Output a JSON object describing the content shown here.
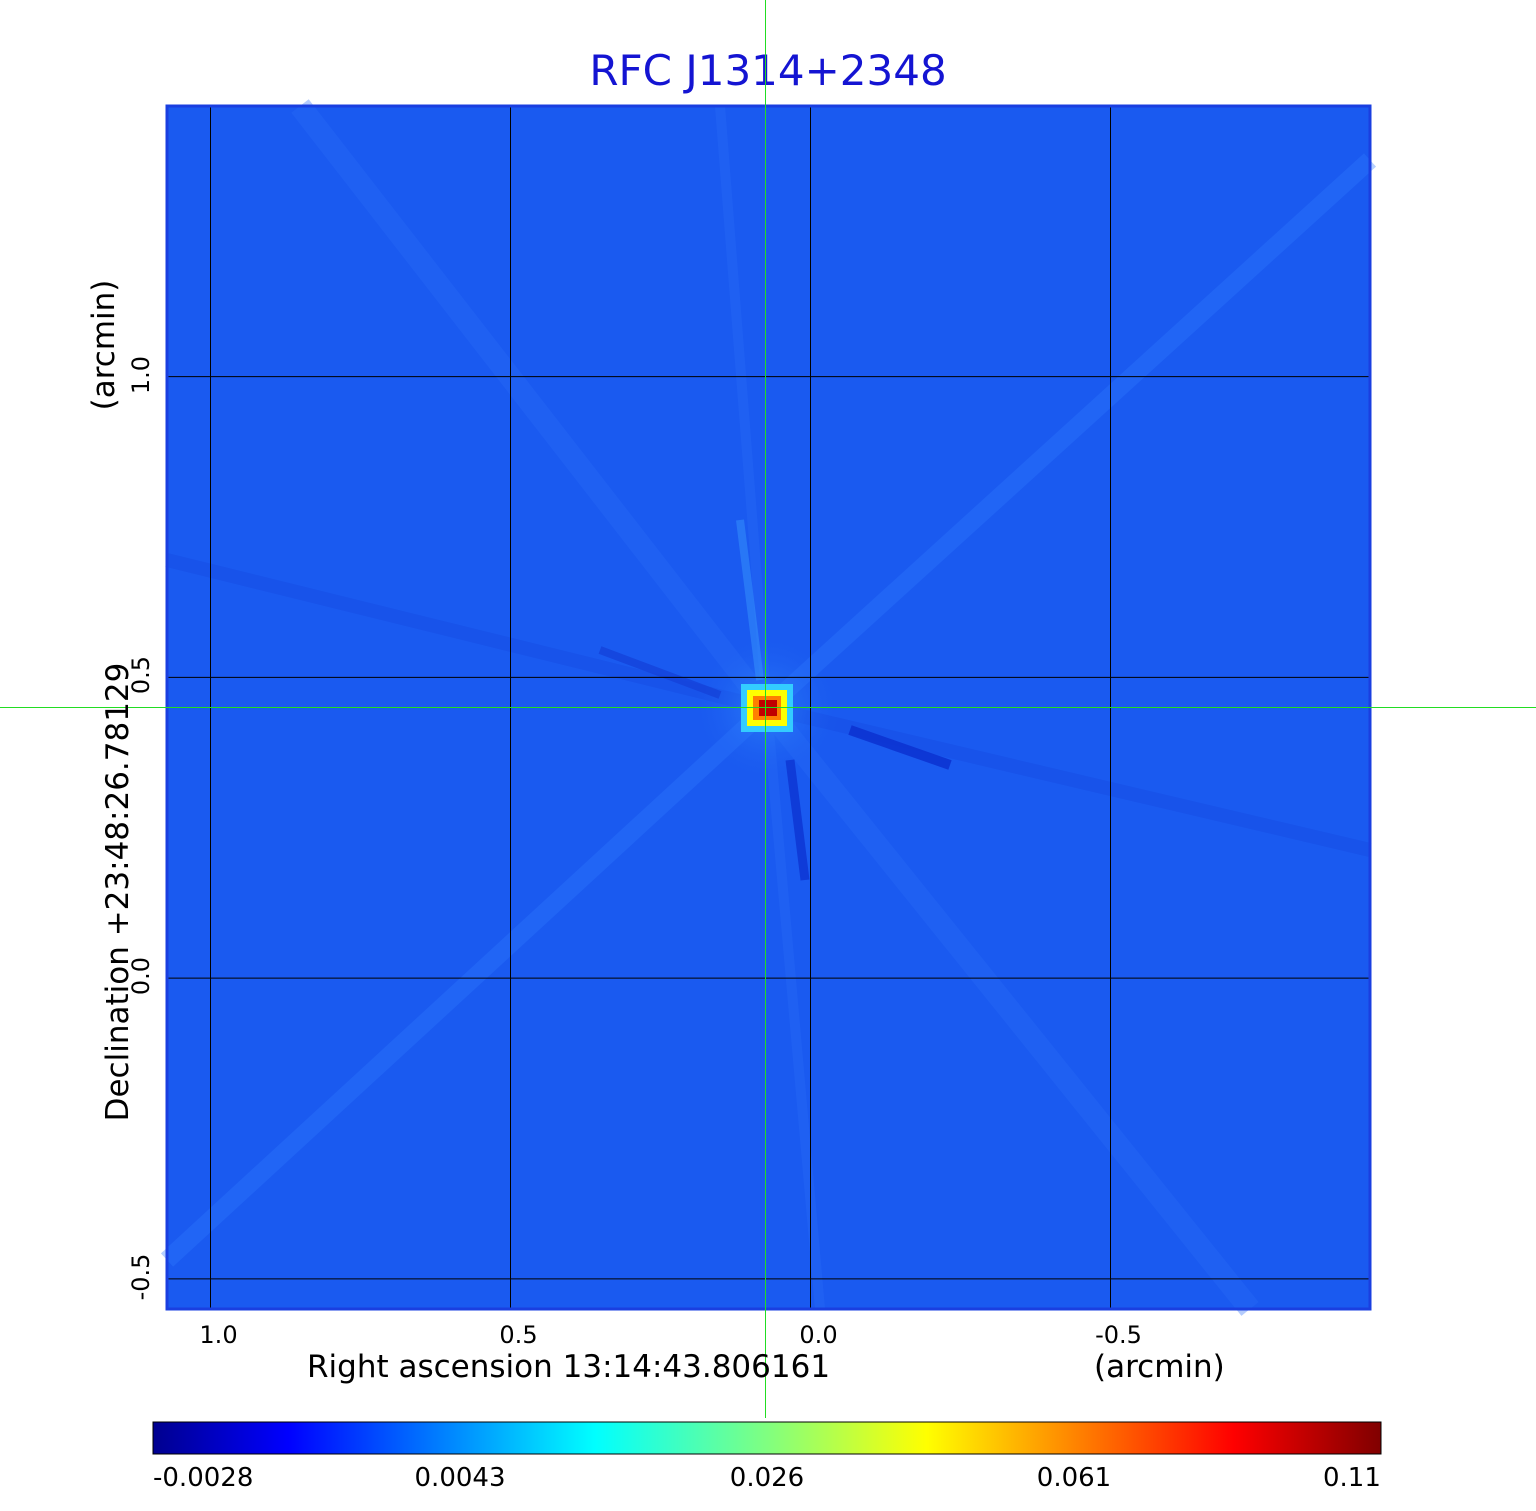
{
  "chart_data": {
    "type": "heatmap",
    "title": "RFC J1314+2348",
    "xlabel": "Right ascension  13:14:43.806161",
    "xunit": "(arcmin)",
    "ylabel": "Declination  +23:48:26.78129",
    "yunit": "(arcmin)",
    "x_ticks": [
      {
        "value": 1.0,
        "label": "1.0"
      },
      {
        "value": 0.5,
        "label": "0.5"
      },
      {
        "value": 0.0,
        "label": "0.0"
      },
      {
        "value": -0.5,
        "label": "-0.5"
      }
    ],
    "y_ticks": [
      {
        "value": 1.0,
        "label": "1.0"
      },
      {
        "value": 0.5,
        "label": "0.5"
      },
      {
        "value": 0.0,
        "label": "0.0"
      },
      {
        "value": -0.5,
        "label": "-0.5"
      }
    ],
    "xlim": [
      1.0725,
      -0.9325
    ],
    "ylim": [
      -0.55,
      1.45
    ],
    "x_direction": "decreasing",
    "grid": true,
    "crosshair": {
      "x": 0.075,
      "y": 0.45
    },
    "source_peak": {
      "x": 0.075,
      "y": 0.45,
      "value": 0.11
    },
    "colorbar": {
      "position": "bottom",
      "colormap": "jet",
      "ticks": [
        {
          "value": -0.0028,
          "label": "-0.0028"
        },
        {
          "value": 0.0043,
          "label": "0.0043"
        },
        {
          "value": 0.026,
          "label": "0.026"
        },
        {
          "value": 0.061,
          "label": "0.061"
        },
        {
          "value": 0.11,
          "label": "0.11"
        }
      ]
    },
    "colors": {
      "background_map": "#1a5af0",
      "grid": "#000000",
      "crosshair": "#22dd22",
      "title": "#1414d2",
      "frame": "#1a3fe0"
    }
  }
}
